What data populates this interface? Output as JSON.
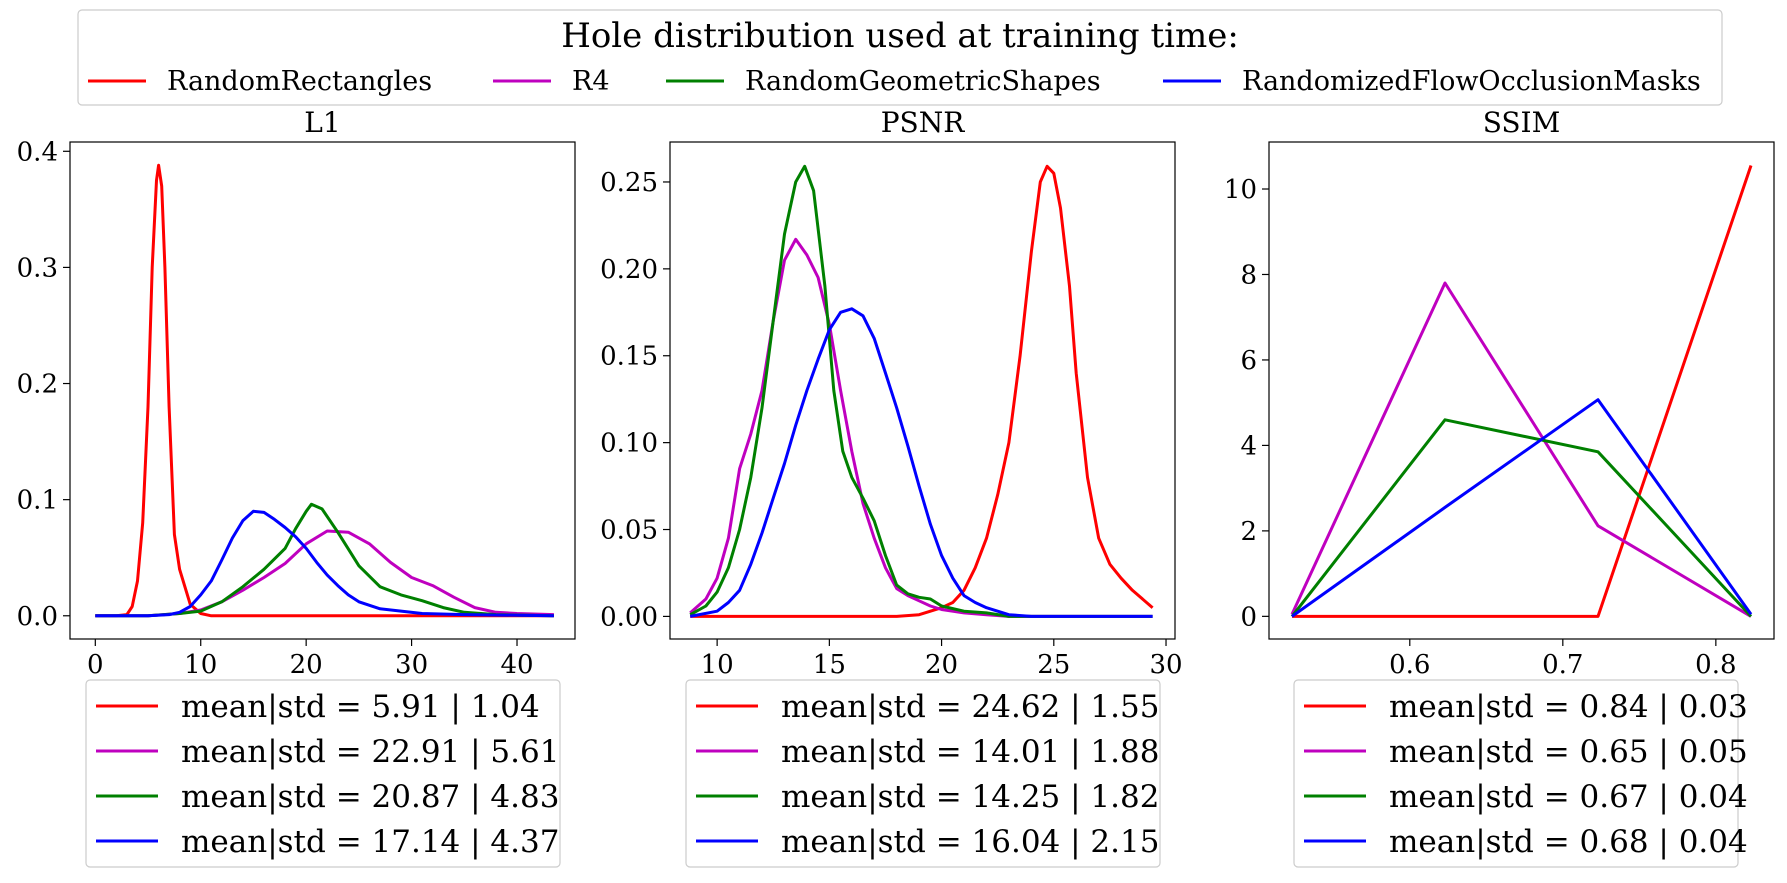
{
  "legend_title": "Hole distribution used at training time:",
  "series_names": [
    "RandomRectangles",
    "R4",
    "RandomGeometricShapes",
    "RandomizedFlowOcclusionMasks"
  ],
  "colors": {
    "RandomRectangles": "#ff0000",
    "R4": "#bf00bf",
    "RandomGeometricShapes": "#008000",
    "RandomizedFlowOcclusionMasks": "#0000ff"
  },
  "chart_data": [
    {
      "type": "line",
      "title": "L1",
      "xlabel": "",
      "ylabel": "",
      "xlim": [
        -2.4,
        45.5
      ],
      "ylim": [
        -0.02,
        0.408
      ],
      "xticks": [
        0,
        10,
        20,
        30,
        40
      ],
      "xtick_labels": [
        "0",
        "10",
        "20",
        "30",
        "40"
      ],
      "yticks": [
        0.0,
        0.1,
        0.2,
        0.3,
        0.4
      ],
      "ytick_labels": [
        "0.0",
        "0.1",
        "0.2",
        "0.3",
        "0.4"
      ],
      "series": [
        {
          "name": "RandomRectangles",
          "points": [
            [
              0,
              0
            ],
            [
              2,
              0
            ],
            [
              3,
              0.001
            ],
            [
              3.5,
              0.008
            ],
            [
              4,
              0.03
            ],
            [
              4.5,
              0.08
            ],
            [
              5,
              0.18
            ],
            [
              5.4,
              0.3
            ],
            [
              5.8,
              0.375
            ],
            [
              6,
              0.388
            ],
            [
              6.3,
              0.37
            ],
            [
              6.6,
              0.3
            ],
            [
              7,
              0.18
            ],
            [
              7.5,
              0.07
            ],
            [
              8,
              0.04
            ],
            [
              9,
              0.01
            ],
            [
              10,
              0.002
            ],
            [
              11,
              0
            ],
            [
              20,
              0
            ],
            [
              30,
              0
            ],
            [
              43.5,
              0
            ]
          ]
        },
        {
          "name": "R4",
          "points": [
            [
              0,
              0
            ],
            [
              5,
              0
            ],
            [
              8,
              0.002
            ],
            [
              10,
              0.005
            ],
            [
              12,
              0.012
            ],
            [
              14,
              0.022
            ],
            [
              16,
              0.033
            ],
            [
              18,
              0.045
            ],
            [
              20,
              0.062
            ],
            [
              22,
              0.073
            ],
            [
              24,
              0.072
            ],
            [
              26,
              0.062
            ],
            [
              28,
              0.046
            ],
            [
              30,
              0.033
            ],
            [
              32,
              0.026
            ],
            [
              34,
              0.016
            ],
            [
              36,
              0.007
            ],
            [
              38,
              0.003
            ],
            [
              40,
              0.002
            ],
            [
              43.5,
              0.001
            ]
          ]
        },
        {
          "name": "RandomGeometricShapes",
          "points": [
            [
              0,
              0
            ],
            [
              5,
              0
            ],
            [
              8,
              0.002
            ],
            [
              10,
              0.004
            ],
            [
              12,
              0.012
            ],
            [
              14,
              0.025
            ],
            [
              16,
              0.04
            ],
            [
              18,
              0.058
            ],
            [
              19,
              0.075
            ],
            [
              20,
              0.09
            ],
            [
              20.5,
              0.096
            ],
            [
              21.5,
              0.092
            ],
            [
              23,
              0.072
            ],
            [
              25,
              0.043
            ],
            [
              27,
              0.025
            ],
            [
              29,
              0.018
            ],
            [
              31,
              0.013
            ],
            [
              33,
              0.007
            ],
            [
              35,
              0.003
            ],
            [
              38,
              0.001
            ],
            [
              43.5,
              0
            ]
          ]
        },
        {
          "name": "RandomizedFlowOcclusionMasks",
          "points": [
            [
              0,
              0
            ],
            [
              5,
              0
            ],
            [
              7,
              0.001
            ],
            [
              8,
              0.003
            ],
            [
              9,
              0.008
            ],
            [
              10,
              0.018
            ],
            [
              11,
              0.03
            ],
            [
              12,
              0.048
            ],
            [
              13,
              0.067
            ],
            [
              14,
              0.082
            ],
            [
              15,
              0.09
            ],
            [
              16,
              0.089
            ],
            [
              17,
              0.083
            ],
            [
              18,
              0.076
            ],
            [
              19,
              0.068
            ],
            [
              20,
              0.058
            ],
            [
              21,
              0.046
            ],
            [
              22,
              0.035
            ],
            [
              23,
              0.026
            ],
            [
              24,
              0.018
            ],
            [
              25,
              0.012
            ],
            [
              27,
              0.006
            ],
            [
              29,
              0.004
            ],
            [
              31,
              0.002
            ],
            [
              35,
              0.001
            ],
            [
              43.5,
              0
            ]
          ]
        }
      ],
      "legend_entries": [
        "mean|std = 5.91 | 1.04",
        "mean|std = 22.91 | 5.61",
        "mean|std = 20.87 | 4.83",
        "mean|std = 17.14 | 4.37"
      ]
    },
    {
      "type": "line",
      "title": "PSNR",
      "xlabel": "",
      "ylabel": "",
      "xlim": [
        7.9,
        30.4
      ],
      "ylim": [
        -0.013,
        0.273
      ],
      "xticks": [
        10,
        15,
        20,
        25,
        30
      ],
      "xtick_labels": [
        "10",
        "15",
        "20",
        "25",
        "30"
      ],
      "yticks": [
        0.0,
        0.05,
        0.1,
        0.15,
        0.2,
        0.25
      ],
      "ytick_labels": [
        "0.00",
        "0.05",
        "0.10",
        "0.15",
        "0.20",
        "0.25"
      ],
      "series": [
        {
          "name": "RandomRectangles",
          "points": [
            [
              8.8,
              0
            ],
            [
              15,
              0
            ],
            [
              18,
              0
            ],
            [
              19,
              0.001
            ],
            [
              19.5,
              0.003
            ],
            [
              20,
              0.005
            ],
            [
              20.5,
              0.008
            ],
            [
              21,
              0.015
            ],
            [
              21.5,
              0.028
            ],
            [
              22,
              0.045
            ],
            [
              22.5,
              0.07
            ],
            [
              23,
              0.1
            ],
            [
              23.5,
              0.15
            ],
            [
              24,
              0.21
            ],
            [
              24.4,
              0.25
            ],
            [
              24.7,
              0.259
            ],
            [
              25,
              0.255
            ],
            [
              25.3,
              0.235
            ],
            [
              25.7,
              0.19
            ],
            [
              26,
              0.14
            ],
            [
              26.5,
              0.08
            ],
            [
              27,
              0.045
            ],
            [
              27.5,
              0.03
            ],
            [
              28,
              0.022
            ],
            [
              28.5,
              0.015
            ],
            [
              29.4,
              0.005
            ]
          ]
        },
        {
          "name": "R4",
          "points": [
            [
              8.8,
              0.002
            ],
            [
              9.5,
              0.01
            ],
            [
              10,
              0.022
            ],
            [
              10.5,
              0.045
            ],
            [
              11,
              0.085
            ],
            [
              11.5,
              0.105
            ],
            [
              12,
              0.13
            ],
            [
              12.5,
              0.17
            ],
            [
              13,
              0.205
            ],
            [
              13.5,
              0.217
            ],
            [
              14,
              0.208
            ],
            [
              14.5,
              0.195
            ],
            [
              15,
              0.168
            ],
            [
              15.5,
              0.13
            ],
            [
              16,
              0.095
            ],
            [
              16.5,
              0.065
            ],
            [
              17,
              0.045
            ],
            [
              17.5,
              0.028
            ],
            [
              18,
              0.016
            ],
            [
              18.5,
              0.012
            ],
            [
              19,
              0.009
            ],
            [
              19.5,
              0.006
            ],
            [
              20,
              0.004
            ],
            [
              21,
              0.002
            ],
            [
              22,
              0.001
            ],
            [
              23,
              0
            ],
            [
              29.4,
              0
            ]
          ]
        },
        {
          "name": "RandomGeometricShapes",
          "points": [
            [
              8.8,
              0.001
            ],
            [
              9.5,
              0.006
            ],
            [
              10,
              0.014
            ],
            [
              10.5,
              0.028
            ],
            [
              11,
              0.05
            ],
            [
              11.5,
              0.08
            ],
            [
              12,
              0.12
            ],
            [
              12.5,
              0.17
            ],
            [
              13,
              0.22
            ],
            [
              13.5,
              0.25
            ],
            [
              13.9,
              0.259
            ],
            [
              14.3,
              0.245
            ],
            [
              14.8,
              0.19
            ],
            [
              15.2,
              0.13
            ],
            [
              15.6,
              0.095
            ],
            [
              16,
              0.08
            ],
            [
              16.5,
              0.068
            ],
            [
              17,
              0.055
            ],
            [
              17.5,
              0.035
            ],
            [
              18,
              0.018
            ],
            [
              18.5,
              0.013
            ],
            [
              19,
              0.011
            ],
            [
              19.5,
              0.01
            ],
            [
              20,
              0.006
            ],
            [
              21,
              0.003
            ],
            [
              22,
              0.002
            ],
            [
              23,
              0
            ],
            [
              29.4,
              0
            ]
          ]
        },
        {
          "name": "RandomizedFlowOcclusionMasks",
          "points": [
            [
              8.8,
              0
            ],
            [
              10,
              0.003
            ],
            [
              10.5,
              0.008
            ],
            [
              11,
              0.015
            ],
            [
              11.5,
              0.03
            ],
            [
              12,
              0.048
            ],
            [
              12.5,
              0.068
            ],
            [
              13,
              0.088
            ],
            [
              13.5,
              0.11
            ],
            [
              14,
              0.13
            ],
            [
              14.5,
              0.148
            ],
            [
              15,
              0.165
            ],
            [
              15.5,
              0.175
            ],
            [
              16,
              0.177
            ],
            [
              16.5,
              0.173
            ],
            [
              17,
              0.16
            ],
            [
              17.5,
              0.14
            ],
            [
              18,
              0.12
            ],
            [
              18.5,
              0.098
            ],
            [
              19,
              0.075
            ],
            [
              19.5,
              0.053
            ],
            [
              20,
              0.035
            ],
            [
              20.5,
              0.022
            ],
            [
              21,
              0.012
            ],
            [
              21.5,
              0.008
            ],
            [
              22,
              0.005
            ],
            [
              23,
              0.001
            ],
            [
              24,
              0
            ],
            [
              29.4,
              0
            ]
          ]
        }
      ],
      "legend_entries": [
        "mean|std = 24.62 | 1.55",
        "mean|std = 14.01 | 1.88",
        "mean|std = 14.25 | 1.82",
        "mean|std = 16.04 | 2.15"
      ]
    },
    {
      "type": "line",
      "title": "SSIM",
      "xlabel": "",
      "ylabel": "",
      "xlim": [
        0.508,
        0.838
      ],
      "ylim": [
        -0.53,
        11.1
      ],
      "xticks": [
        0.6,
        0.7,
        0.8
      ],
      "xtick_labels": [
        "0.6",
        "0.7",
        "0.8"
      ],
      "yticks": [
        0,
        2,
        4,
        6,
        8,
        10
      ],
      "ytick_labels": [
        "0",
        "2",
        "4",
        "6",
        "8",
        "10"
      ],
      "series": [
        {
          "name": "RandomRectangles",
          "points": [
            [
              0.523,
              0
            ],
            [
              0.623,
              0
            ],
            [
              0.723,
              0
            ],
            [
              0.823,
              10.55
            ]
          ]
        },
        {
          "name": "R4",
          "points": [
            [
              0.523,
              0.05
            ],
            [
              0.623,
              7.8
            ],
            [
              0.723,
              2.12
            ],
            [
              0.823,
              0
            ]
          ]
        },
        {
          "name": "RandomGeometricShapes",
          "points": [
            [
              0.523,
              0
            ],
            [
              0.623,
              4.6
            ],
            [
              0.723,
              3.85
            ],
            [
              0.823,
              0
            ]
          ]
        },
        {
          "name": "RandomizedFlowOcclusionMasks",
          "points": [
            [
              0.523,
              0
            ],
            [
              0.623,
              2.55
            ],
            [
              0.723,
              5.07
            ],
            [
              0.823,
              0.05
            ]
          ]
        }
      ],
      "legend_entries": [
        "mean|std = 0.84 | 0.03",
        "mean|std = 0.65 | 0.05",
        "mean|std = 0.67 | 0.04",
        "mean|std = 0.68 | 0.04"
      ]
    }
  ]
}
